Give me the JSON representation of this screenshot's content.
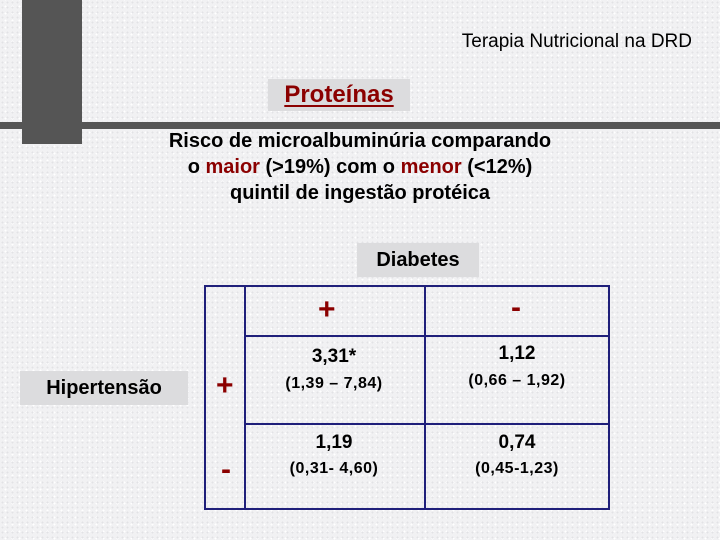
{
  "header": {
    "title": "Terapia Nutricional na DRD"
  },
  "section": {
    "label": "Proteínas"
  },
  "subtitle": {
    "line1": "Risco de microalbuminúria comparando",
    "line2_pre": "o ",
    "line2_maior": "maior",
    "line2_mid": " (>19%) com o ",
    "line2_menor": "menor",
    "line2_post": " (<12%)",
    "line3": "quintil de ingestão protéica"
  },
  "table": {
    "column_group": "Diabetes",
    "row_group": "Hipertensão",
    "columns": [
      "+",
      "-"
    ],
    "rows": [
      {
        "sign": "+",
        "cells": [
          {
            "value": "3,31*",
            "ci": "(1,39 – 7,84)"
          },
          {
            "value": "1,12",
            "ci": "(0,66 – 1,92)"
          }
        ]
      },
      {
        "sign": "-",
        "cells": [
          {
            "value": "1,19",
            "ci": "(0,31- 4,60)"
          },
          {
            "value": "0,74",
            "ci": "(0,45-1,23)"
          }
        ]
      }
    ]
  },
  "colors": {
    "accent": "#8b0000",
    "grid": "#1f1f7a",
    "bar": "#555555",
    "label_bg": "#dcdcde"
  }
}
